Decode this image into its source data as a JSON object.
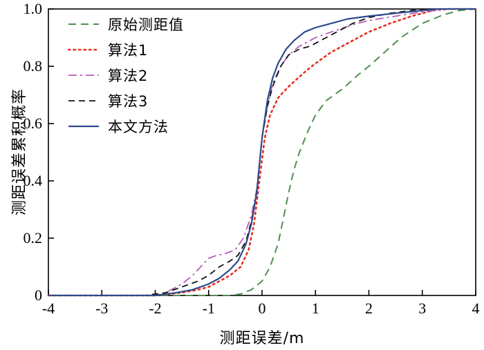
{
  "figure": {
    "background": "#ffffff",
    "frame_color": "#000000"
  },
  "chart_data": {
    "type": "line",
    "title": "",
    "xlabel": "测距误差/m",
    "ylabel": "测距误差累积概率",
    "xlim": [
      -4,
      4
    ],
    "ylim": [
      0,
      1
    ],
    "grid": false,
    "legend_position": "upper-left",
    "xticks": [
      {
        "v": -4,
        "label": "-4"
      },
      {
        "v": -3,
        "label": "-3"
      },
      {
        "v": -2,
        "label": "-2"
      },
      {
        "v": -1,
        "label": "-1"
      },
      {
        "v": 0,
        "label": "0"
      },
      {
        "v": 1,
        "label": "1"
      },
      {
        "v": 2,
        "label": "2"
      },
      {
        "v": 3,
        "label": "3"
      },
      {
        "v": 4,
        "label": "4"
      }
    ],
    "yticks": [
      {
        "v": 0,
        "label": "0"
      },
      {
        "v": 0.2,
        "label": "0.2"
      },
      {
        "v": 0.4,
        "label": "0.4"
      },
      {
        "v": 0.6,
        "label": "0.6"
      },
      {
        "v": 0.8,
        "label": "0.8"
      },
      {
        "v": 1.0,
        "label": "1.0"
      }
    ],
    "series": [
      {
        "name": "原始测距值",
        "color": "#4e8f4e",
        "dash": "11 7",
        "width": 2,
        "points": [
          [
            -4,
            0
          ],
          [
            -1,
            0
          ],
          [
            -0.6,
            0
          ],
          [
            -0.4,
            0.005
          ],
          [
            -0.2,
            0.02
          ],
          [
            0,
            0.05
          ],
          [
            0.15,
            0.1
          ],
          [
            0.3,
            0.18
          ],
          [
            0.4,
            0.27
          ],
          [
            0.5,
            0.36
          ],
          [
            0.6,
            0.44
          ],
          [
            0.7,
            0.5
          ],
          [
            0.85,
            0.57
          ],
          [
            1,
            0.63
          ],
          [
            1.2,
            0.68
          ],
          [
            1.5,
            0.72
          ],
          [
            1.8,
            0.77
          ],
          [
            2,
            0.8
          ],
          [
            2.3,
            0.85
          ],
          [
            2.6,
            0.9
          ],
          [
            3,
            0.95
          ],
          [
            3.4,
            0.98
          ],
          [
            3.7,
            0.995
          ],
          [
            4,
            1
          ]
        ]
      },
      {
        "name": "算法1",
        "color": "#e62e1e",
        "dash": "2.5 5",
        "width": 2.6,
        "points": [
          [
            -4,
            0
          ],
          [
            -2,
            0
          ],
          [
            -1.5,
            0.01
          ],
          [
            -1.2,
            0.02
          ],
          [
            -1,
            0.03
          ],
          [
            -0.8,
            0.05
          ],
          [
            -0.6,
            0.07
          ],
          [
            -0.4,
            0.1
          ],
          [
            -0.25,
            0.16
          ],
          [
            -0.15,
            0.25
          ],
          [
            -0.05,
            0.4
          ],
          [
            0.05,
            0.55
          ],
          [
            0.15,
            0.63
          ],
          [
            0.3,
            0.69
          ],
          [
            0.5,
            0.73
          ],
          [
            0.8,
            0.78
          ],
          [
            1,
            0.81
          ],
          [
            1.3,
            0.85
          ],
          [
            1.6,
            0.88
          ],
          [
            2,
            0.92
          ],
          [
            2.4,
            0.95
          ],
          [
            2.8,
            0.975
          ],
          [
            3.2,
            0.995
          ],
          [
            3.5,
            1
          ],
          [
            4,
            1
          ]
        ]
      },
      {
        "name": "算法2",
        "color": "#b85ab8",
        "dash": "12 5 3 5",
        "width": 1.8,
        "points": [
          [
            -4,
            0
          ],
          [
            -2,
            0
          ],
          [
            -1.8,
            0.01
          ],
          [
            -1.5,
            0.04
          ],
          [
            -1.3,
            0.07
          ],
          [
            -1.1,
            0.11
          ],
          [
            -1,
            0.13
          ],
          [
            -0.85,
            0.14
          ],
          [
            -0.7,
            0.145
          ],
          [
            -0.5,
            0.16
          ],
          [
            -0.35,
            0.2
          ],
          [
            -0.2,
            0.28
          ],
          [
            -0.1,
            0.37
          ],
          [
            0,
            0.55
          ],
          [
            0.1,
            0.66
          ],
          [
            0.2,
            0.74
          ],
          [
            0.35,
            0.8
          ],
          [
            0.5,
            0.84
          ],
          [
            0.7,
            0.87
          ],
          [
            1,
            0.9
          ],
          [
            1.3,
            0.92
          ],
          [
            1.7,
            0.945
          ],
          [
            2,
            0.96
          ],
          [
            2.5,
            0.975
          ],
          [
            3,
            0.99
          ],
          [
            3.5,
            1
          ],
          [
            4,
            1
          ]
        ]
      },
      {
        "name": "算法3",
        "color": "#111111",
        "dash": "9 6",
        "width": 1.8,
        "points": [
          [
            -4,
            0
          ],
          [
            -2.2,
            0
          ],
          [
            -1.8,
            0.01
          ],
          [
            -1.5,
            0.03
          ],
          [
            -1.2,
            0.05
          ],
          [
            -1,
            0.07
          ],
          [
            -0.8,
            0.1
          ],
          [
            -0.6,
            0.12
          ],
          [
            -0.45,
            0.14
          ],
          [
            -0.3,
            0.19
          ],
          [
            -0.2,
            0.26
          ],
          [
            -0.1,
            0.36
          ],
          [
            0,
            0.55
          ],
          [
            0.1,
            0.66
          ],
          [
            0.2,
            0.73
          ],
          [
            0.35,
            0.8
          ],
          [
            0.5,
            0.84
          ],
          [
            0.7,
            0.86
          ],
          [
            0.9,
            0.87
          ],
          [
            1.1,
            0.89
          ],
          [
            1.4,
            0.92
          ],
          [
            1.7,
            0.95
          ],
          [
            2,
            0.97
          ],
          [
            2.4,
            0.985
          ],
          [
            2.8,
            0.995
          ],
          [
            3.2,
            1
          ],
          [
            4,
            1
          ]
        ]
      },
      {
        "name": "本文方法",
        "color": "#2b4a8b",
        "dash": "",
        "width": 2.2,
        "points": [
          [
            -4,
            0
          ],
          [
            -2,
            0
          ],
          [
            -1.6,
            0.01
          ],
          [
            -1.3,
            0.02
          ],
          [
            -1,
            0.04
          ],
          [
            -0.8,
            0.06
          ],
          [
            -0.6,
            0.09
          ],
          [
            -0.45,
            0.12
          ],
          [
            -0.3,
            0.18
          ],
          [
            -0.2,
            0.25
          ],
          [
            -0.1,
            0.36
          ],
          [
            0,
            0.55
          ],
          [
            0.1,
            0.68
          ],
          [
            0.2,
            0.76
          ],
          [
            0.3,
            0.81
          ],
          [
            0.45,
            0.86
          ],
          [
            0.6,
            0.89
          ],
          [
            0.8,
            0.92
          ],
          [
            1,
            0.935
          ],
          [
            1.3,
            0.95
          ],
          [
            1.6,
            0.965
          ],
          [
            2,
            0.975
          ],
          [
            2.5,
            0.985
          ],
          [
            3,
            0.995
          ],
          [
            3.3,
            1
          ],
          [
            4,
            1
          ]
        ]
      }
    ]
  }
}
